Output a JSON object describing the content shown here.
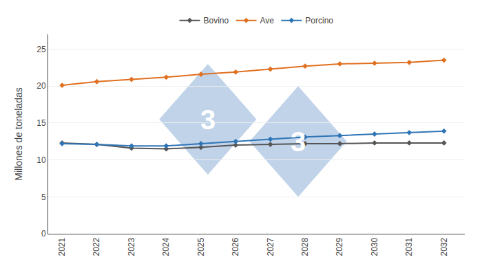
{
  "chart_data": {
    "type": "line",
    "x": [
      2021,
      2022,
      2023,
      2024,
      2025,
      2026,
      2027,
      2028,
      2029,
      2030,
      2031,
      2032
    ],
    "series": [
      {
        "name": "Bovino",
        "color": "#555555",
        "values": [
          12.3,
          12.1,
          11.6,
          11.5,
          11.7,
          12.0,
          12.1,
          12.2,
          12.2,
          12.3,
          12.3,
          12.3
        ]
      },
      {
        "name": "Ave",
        "color": "#E07020",
        "values": [
          20.1,
          20.6,
          20.9,
          21.2,
          21.6,
          21.9,
          22.3,
          22.7,
          23.0,
          23.1,
          23.2,
          23.5
        ]
      },
      {
        "name": "Porcino",
        "color": "#2E75B6",
        "values": [
          12.2,
          12.1,
          11.9,
          11.9,
          12.2,
          12.5,
          12.8,
          13.1,
          13.3,
          13.5,
          13.7,
          13.9
        ]
      }
    ],
    "marker": "diamond",
    "y_label": "Millones de toneladas",
    "xlim": [
      2020.6,
      2032.6
    ],
    "xticks": [
      2021,
      2022,
      2023,
      2024,
      2025,
      2026,
      2027,
      2028,
      2029,
      2030,
      2031,
      2032
    ],
    "ylim": [
      0,
      27
    ],
    "yticks": [
      0,
      5,
      10,
      15,
      20,
      25
    ],
    "grid": true,
    "legend": "top",
    "annotations": [
      {
        "text": "3",
        "x": 2025.2,
        "y": 15.5
      },
      {
        "text": "3",
        "x": 2027.8,
        "y": 12.5
      }
    ]
  }
}
